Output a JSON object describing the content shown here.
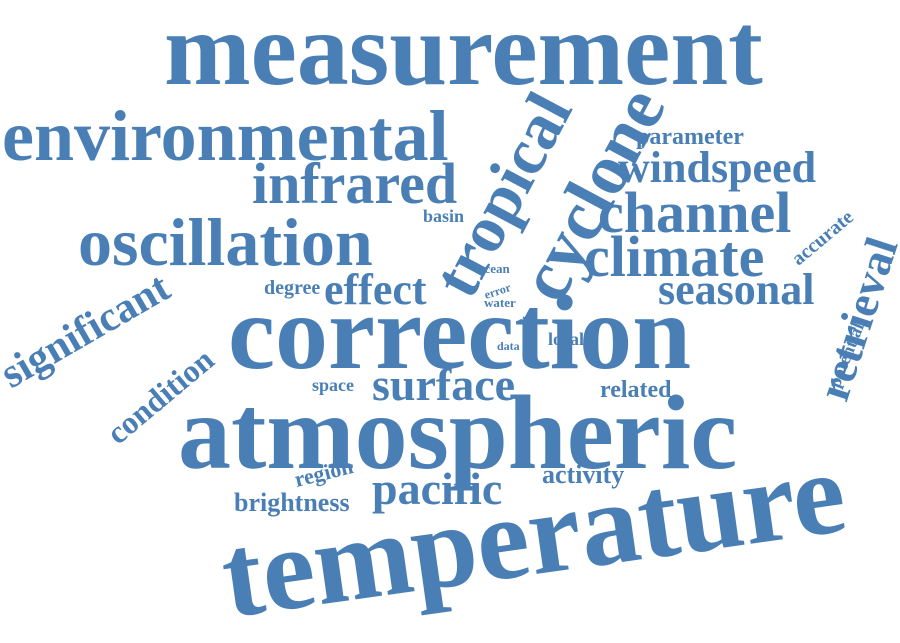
{
  "color": "#4a7fb6",
  "words": [
    "measurement",
    "environmental",
    "tropical",
    "cyclone",
    "parameter",
    "windspeed",
    "infrared",
    "channel",
    "basin",
    "oscillation",
    "accurate",
    "climate",
    "retrieval",
    "ocean",
    "degree",
    "effect",
    "seasonal",
    "error",
    "water",
    "significant",
    "correction",
    "atsr",
    "data",
    "local",
    "potential",
    "condition",
    "space",
    "surface",
    "related",
    "atmospheric",
    "region",
    "activity",
    "brightness",
    "pacific",
    "temperature"
  ]
}
